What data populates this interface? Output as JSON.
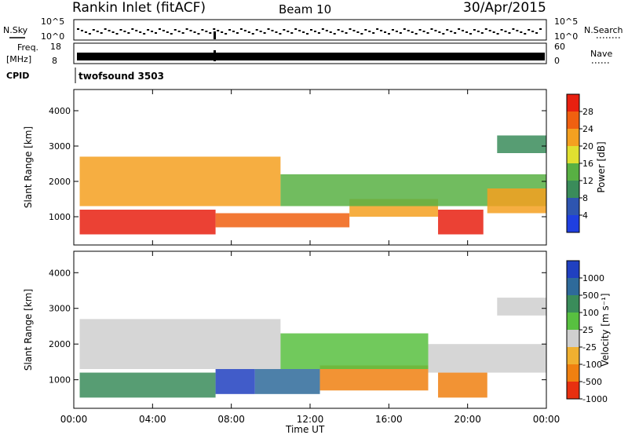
{
  "header": {
    "station": "Rankin Inlet (fitACF)",
    "beam": "Beam 10",
    "date": "30/Apr/2015"
  },
  "strips": {
    "nsky_label": "N.Sky",
    "nsky_top": "10^5",
    "nsky_bottom": "10^0",
    "nsearch_top": "10^5",
    "nsearch_bottom": "10^0",
    "nsearch_label": "N.Search",
    "freq_label_1": "Freq.",
    "freq_label_2": "[MHz]",
    "freq_top": "18",
    "freq_bottom": "8",
    "nave_top": "60",
    "nave_bottom": "0",
    "nave_label": "Nave",
    "cpid_label": "CPID",
    "cpid_value": "twofsound 3503"
  },
  "chart_data": [
    {
      "type": "heatmap",
      "name": "power",
      "ylabel": "Slant Range [km]",
      "yticks": [
        "1000",
        "2000",
        "3000",
        "4000"
      ],
      "ylim": [
        200,
        4600
      ],
      "colorbar_label": "Power [dB]",
      "colorbar_ticks": [
        "4",
        "8",
        "12",
        "16",
        "20",
        "24",
        "28"
      ],
      "colors": [
        "#1f3fe0",
        "#2e55b0",
        "#3a8c5a",
        "#58b043",
        "#e0e030",
        "#f4a020",
        "#f06010",
        "#e82010"
      ],
      "bands": [
        {
          "t0": 0.3,
          "t1": 7.2,
          "r0": 500,
          "r1": 1200,
          "level": 7
        },
        {
          "t0": 0.3,
          "t1": 10.5,
          "r0": 1300,
          "r1": 2700,
          "level": 5
        },
        {
          "t0": 7.2,
          "t1": 14,
          "r0": 700,
          "r1": 1100,
          "level": 6
        },
        {
          "t0": 14,
          "t1": 18.5,
          "r0": 1000,
          "r1": 1500,
          "level": 5
        },
        {
          "t0": 18.5,
          "t1": 20.8,
          "r0": 500,
          "r1": 1200,
          "level": 7
        },
        {
          "t0": 10.5,
          "t1": 24,
          "r0": 1300,
          "r1": 2200,
          "level": 3
        },
        {
          "t0": 21,
          "t1": 24,
          "r0": 1100,
          "r1": 1800,
          "level": 5
        },
        {
          "t0": 21.5,
          "t1": 24,
          "r0": 2800,
          "r1": 3300,
          "level": 2
        }
      ]
    },
    {
      "type": "heatmap",
      "name": "velocity",
      "ylabel": "Slant Range [km]",
      "yticks": [
        "1000",
        "2000",
        "3000",
        "4000"
      ],
      "ylim": [
        200,
        4600
      ],
      "colorbar_label": "Velocity [m s⁻¹]",
      "colorbar_ticks": [
        "1000",
        "500",
        "100",
        "25",
        "-25",
        "-100",
        "-500",
        "-1000"
      ],
      "colors": [
        "#2040c0",
        "#2e6a9a",
        "#3a8c5a",
        "#58c040",
        "#cfcfcf",
        "#f0b030",
        "#f08010",
        "#e83010"
      ],
      "bands": [
        {
          "t0": 0.3,
          "t1": 7.2,
          "r0": 500,
          "r1": 1200,
          "level": 2
        },
        {
          "t0": 7.2,
          "t1": 9.2,
          "r0": 600,
          "r1": 1300,
          "level": 0
        },
        {
          "t0": 9.2,
          "t1": 12.5,
          "r0": 600,
          "r1": 1300,
          "level": 1
        },
        {
          "t0": 12.5,
          "t1": 18,
          "r0": 700,
          "r1": 1400,
          "level": 6
        },
        {
          "t0": 18.5,
          "t1": 21,
          "r0": 500,
          "r1": 1200,
          "level": 6
        },
        {
          "t0": 0.3,
          "t1": 10.5,
          "r0": 1300,
          "r1": 2700,
          "level": 4
        },
        {
          "t0": 10.5,
          "t1": 18,
          "r0": 1300,
          "r1": 2300,
          "level": 3
        },
        {
          "t0": 18,
          "t1": 24,
          "r0": 1200,
          "r1": 2000,
          "level": 4
        },
        {
          "t0": 21.5,
          "t1": 24,
          "r0": 2800,
          "r1": 3300,
          "level": 4
        }
      ]
    }
  ],
  "time_axis": {
    "xlabel": "Time UT",
    "xlim_hours": [
      0,
      24
    ],
    "ticks": [
      {
        "h": 0,
        "label": "00:00"
      },
      {
        "h": 4,
        "label": "04:00"
      },
      {
        "h": 8,
        "label": "08:00"
      },
      {
        "h": 12,
        "label": "12:00"
      },
      {
        "h": 16,
        "label": "16:00"
      },
      {
        "h": 20,
        "label": "20:00"
      },
      {
        "h": 24,
        "label": "00:00"
      }
    ]
  }
}
